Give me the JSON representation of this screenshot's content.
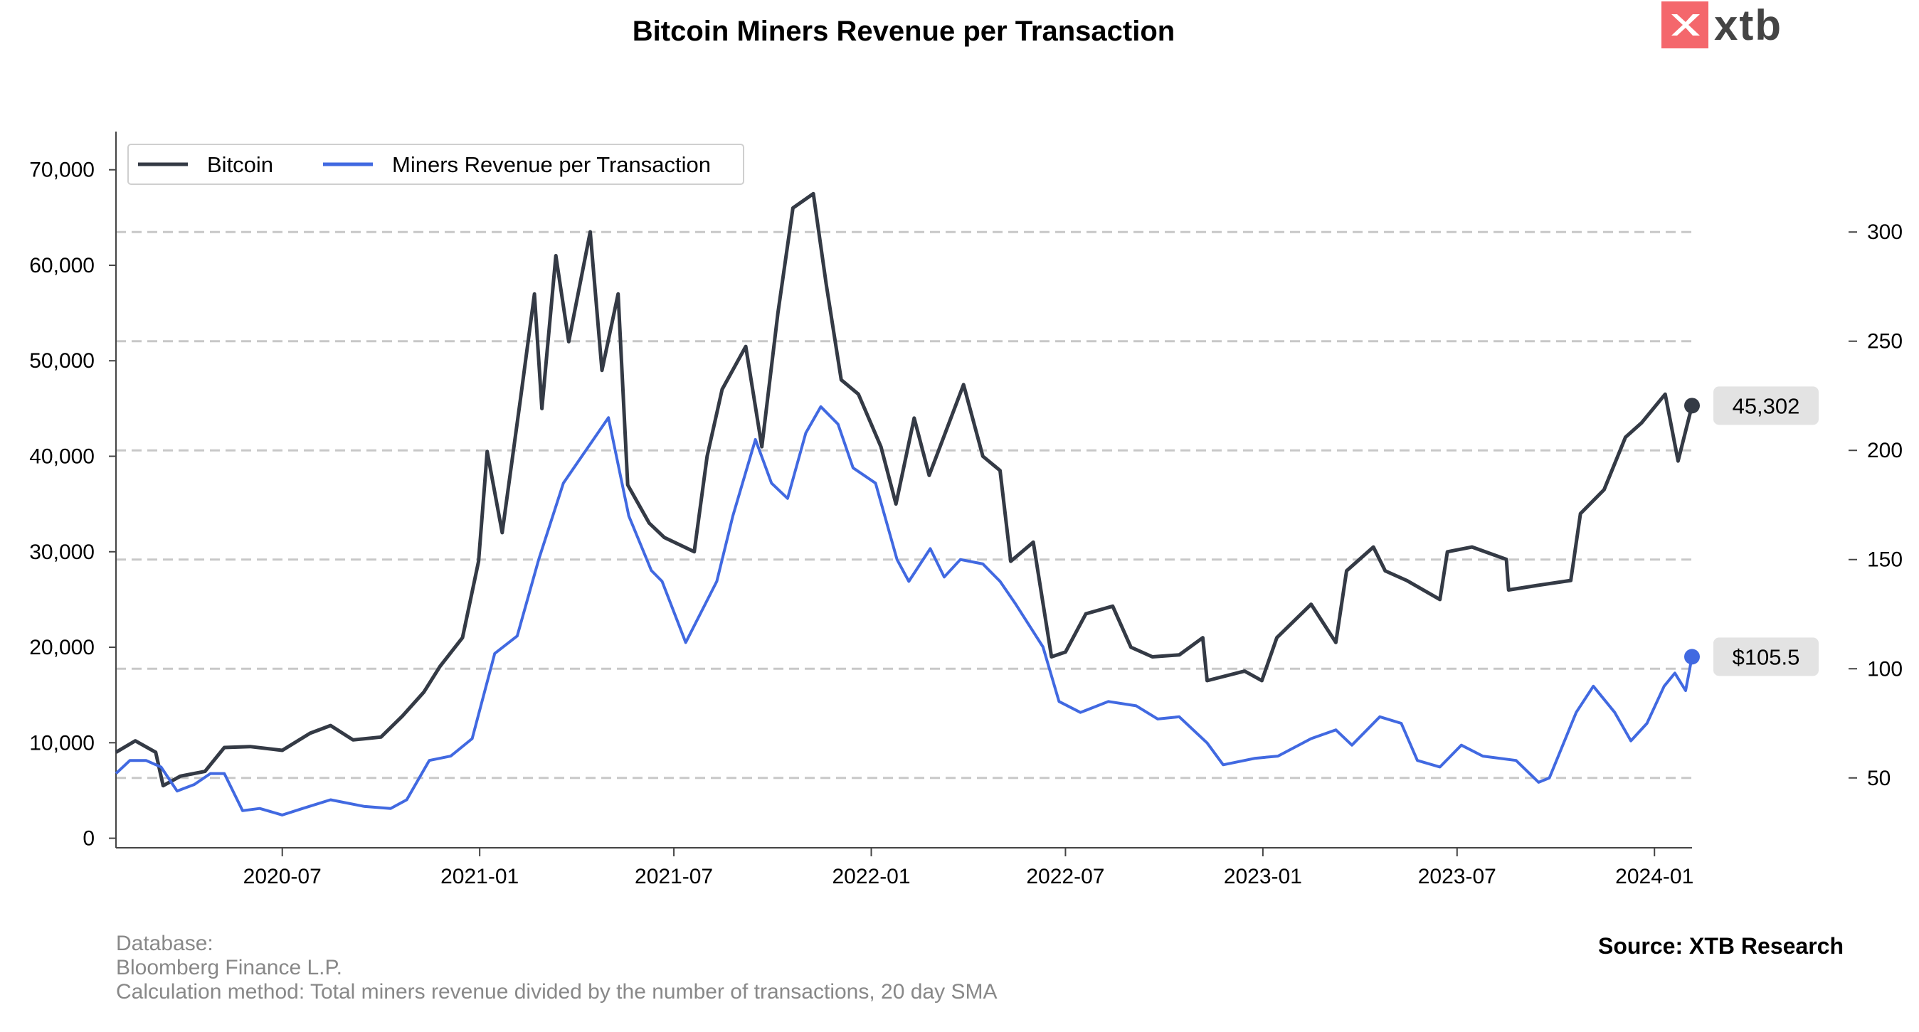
{
  "title": "Bitcoin Miners Revenue per Transaction",
  "logo": {
    "text": "xtb",
    "color": "#f4676c"
  },
  "footer": {
    "database_label": "Database:",
    "database_value": "Bloomberg Finance L.P.",
    "calculation": "Calculation method: Total miners revenue divided by the number of transactions, 20 day SMA",
    "source": "Source: XTB Research"
  },
  "chart_data": {
    "type": "line",
    "title": "Bitcoin Miners Revenue per Transaction",
    "x_range": [
      "2020-01-28",
      "2024-02-05"
    ],
    "x_ticks": [
      "2020-07",
      "2021-01",
      "2021-07",
      "2022-01",
      "2022-07",
      "2023-01",
      "2023-07",
      "2024-01"
    ],
    "y_left": {
      "ticks": [
        "0",
        "10,000",
        "20,000",
        "30,000",
        "40,000",
        "50,000",
        "60,000",
        "70,000"
      ],
      "range": [
        -1000,
        74000
      ]
    },
    "y_right": {
      "ticks": [
        "50",
        "100",
        "150",
        "200",
        "250",
        "300"
      ],
      "range": [
        18,
        346
      ]
    },
    "grid": "horizontal dashed at right-axis ticks",
    "legend": "top-left",
    "series": [
      {
        "name": "Bitcoin",
        "axis": "left",
        "color": "#343a45",
        "end_label": "45,302",
        "points": [
          [
            "2020-01-28",
            9000
          ],
          [
            "2020-02-15",
            10200
          ],
          [
            "2020-03-05",
            9000
          ],
          [
            "2020-03-12",
            5500
          ],
          [
            "2020-03-28",
            6500
          ],
          [
            "2020-04-20",
            7000
          ],
          [
            "2020-05-08",
            9500
          ],
          [
            "2020-06-01",
            9600
          ],
          [
            "2020-07-01",
            9200
          ],
          [
            "2020-07-27",
            11000
          ],
          [
            "2020-08-15",
            11800
          ],
          [
            "2020-09-05",
            10300
          ],
          [
            "2020-10-01",
            10600
          ],
          [
            "2020-10-21",
            12800
          ],
          [
            "2020-11-10",
            15300
          ],
          [
            "2020-11-25",
            18000
          ],
          [
            "2020-12-16",
            21000
          ],
          [
            "2020-12-31",
            29000
          ],
          [
            "2021-01-08",
            40500
          ],
          [
            "2021-01-22",
            32000
          ],
          [
            "2021-02-08",
            46000
          ],
          [
            "2021-02-21",
            57000
          ],
          [
            "2021-02-28",
            45000
          ],
          [
            "2021-03-13",
            61000
          ],
          [
            "2021-03-25",
            52000
          ],
          [
            "2021-04-14",
            63500
          ],
          [
            "2021-04-25",
            49000
          ],
          [
            "2021-05-10",
            57000
          ],
          [
            "2021-05-19",
            37000
          ],
          [
            "2021-06-08",
            33000
          ],
          [
            "2021-06-22",
            31500
          ],
          [
            "2021-07-20",
            30000
          ],
          [
            "2021-08-01",
            40000
          ],
          [
            "2021-08-15",
            47000
          ],
          [
            "2021-09-06",
            51500
          ],
          [
            "2021-09-21",
            41000
          ],
          [
            "2021-10-06",
            55000
          ],
          [
            "2021-10-20",
            66000
          ],
          [
            "2021-11-08",
            67500
          ],
          [
            "2021-11-20",
            58000
          ],
          [
            "2021-12-04",
            48000
          ],
          [
            "2021-12-20",
            46500
          ],
          [
            "2022-01-10",
            41000
          ],
          [
            "2022-01-24",
            35000
          ],
          [
            "2022-02-10",
            44000
          ],
          [
            "2022-02-24",
            38000
          ],
          [
            "2022-03-28",
            47500
          ],
          [
            "2022-04-15",
            40000
          ],
          [
            "2022-05-01",
            38500
          ],
          [
            "2022-05-11",
            29000
          ],
          [
            "2022-06-01",
            31000
          ],
          [
            "2022-06-18",
            19000
          ],
          [
            "2022-07-01",
            19500
          ],
          [
            "2022-07-20",
            23500
          ],
          [
            "2022-08-14",
            24300
          ],
          [
            "2022-08-31",
            20000
          ],
          [
            "2022-09-20",
            19000
          ],
          [
            "2022-10-15",
            19200
          ],
          [
            "2022-11-06",
            21000
          ],
          [
            "2022-11-10",
            16500
          ],
          [
            "2022-12-15",
            17500
          ],
          [
            "2022-12-31",
            16500
          ],
          [
            "2023-01-14",
            21000
          ],
          [
            "2023-02-15",
            24500
          ],
          [
            "2023-03-10",
            20500
          ],
          [
            "2023-03-20",
            28000
          ],
          [
            "2023-04-14",
            30500
          ],
          [
            "2023-04-25",
            28000
          ],
          [
            "2023-05-15",
            27000
          ],
          [
            "2023-06-15",
            25000
          ],
          [
            "2023-06-22",
            30000
          ],
          [
            "2023-07-15",
            30500
          ],
          [
            "2023-08-16",
            29200
          ],
          [
            "2023-08-18",
            26000
          ],
          [
            "2023-09-15",
            26500
          ],
          [
            "2023-10-15",
            27000
          ],
          [
            "2023-10-24",
            34000
          ],
          [
            "2023-11-15",
            36500
          ],
          [
            "2023-12-05",
            42000
          ],
          [
            "2023-12-20",
            43500
          ],
          [
            "2024-01-11",
            46500
          ],
          [
            "2024-01-23",
            39500
          ],
          [
            "2024-02-05",
            45302
          ]
        ]
      },
      {
        "name": "Miners Revenue per Transaction",
        "axis": "right",
        "color": "#4169e1",
        "end_label": "$105.5",
        "points": [
          [
            "2020-01-28",
            52
          ],
          [
            "2020-02-10",
            58
          ],
          [
            "2020-02-25",
            58
          ],
          [
            "2020-03-10",
            55
          ],
          [
            "2020-03-25",
            44
          ],
          [
            "2020-04-10",
            47
          ],
          [
            "2020-04-25",
            52
          ],
          [
            "2020-05-08",
            52
          ],
          [
            "2020-05-25",
            35
          ],
          [
            "2020-06-10",
            36
          ],
          [
            "2020-07-01",
            33
          ],
          [
            "2020-07-20",
            36
          ],
          [
            "2020-08-15",
            40
          ],
          [
            "2020-09-15",
            37
          ],
          [
            "2020-10-10",
            36
          ],
          [
            "2020-10-25",
            40
          ],
          [
            "2020-11-15",
            58
          ],
          [
            "2020-12-05",
            60
          ],
          [
            "2020-12-25",
            68
          ],
          [
            "2021-01-15",
            107
          ],
          [
            "2021-02-05",
            115
          ],
          [
            "2021-02-25",
            150
          ],
          [
            "2021-03-20",
            185
          ],
          [
            "2021-04-10",
            200
          ],
          [
            "2021-05-01",
            215
          ],
          [
            "2021-05-20",
            170
          ],
          [
            "2021-06-10",
            145
          ],
          [
            "2021-06-20",
            140
          ],
          [
            "2021-07-12",
            112
          ],
          [
            "2021-08-10",
            140
          ],
          [
            "2021-08-25",
            170
          ],
          [
            "2021-09-15",
            205
          ],
          [
            "2021-09-30",
            185
          ],
          [
            "2021-10-15",
            178
          ],
          [
            "2021-11-01",
            208
          ],
          [
            "2021-11-15",
            220
          ],
          [
            "2021-12-01",
            212
          ],
          [
            "2021-12-15",
            192
          ],
          [
            "2022-01-05",
            185
          ],
          [
            "2022-01-25",
            150
          ],
          [
            "2022-02-05",
            140
          ],
          [
            "2022-02-25",
            155
          ],
          [
            "2022-03-10",
            142
          ],
          [
            "2022-03-25",
            150
          ],
          [
            "2022-04-15",
            148
          ],
          [
            "2022-05-01",
            140
          ],
          [
            "2022-05-15",
            130
          ],
          [
            "2022-06-10",
            110
          ],
          [
            "2022-06-25",
            85
          ],
          [
            "2022-07-15",
            80
          ],
          [
            "2022-08-10",
            85
          ],
          [
            "2022-09-05",
            83
          ],
          [
            "2022-09-25",
            77
          ],
          [
            "2022-10-15",
            78
          ],
          [
            "2022-11-10",
            66
          ],
          [
            "2022-11-25",
            56
          ],
          [
            "2022-12-25",
            59
          ],
          [
            "2023-01-15",
            60
          ],
          [
            "2023-02-15",
            68
          ],
          [
            "2023-03-10",
            72
          ],
          [
            "2023-03-25",
            65
          ],
          [
            "2023-04-20",
            78
          ],
          [
            "2023-05-10",
            75
          ],
          [
            "2023-05-25",
            58
          ],
          [
            "2023-06-15",
            55
          ],
          [
            "2023-07-05",
            65
          ],
          [
            "2023-07-25",
            60
          ],
          [
            "2023-08-25",
            58
          ],
          [
            "2023-09-15",
            48
          ],
          [
            "2023-09-25",
            50
          ],
          [
            "2023-10-20",
            80
          ],
          [
            "2023-11-05",
            92
          ],
          [
            "2023-11-25",
            80
          ],
          [
            "2023-12-10",
            67
          ],
          [
            "2023-12-25",
            75
          ],
          [
            "2024-01-10",
            92
          ],
          [
            "2024-01-20",
            98
          ],
          [
            "2024-01-30",
            90
          ],
          [
            "2024-02-05",
            105.5
          ]
        ]
      }
    ]
  }
}
